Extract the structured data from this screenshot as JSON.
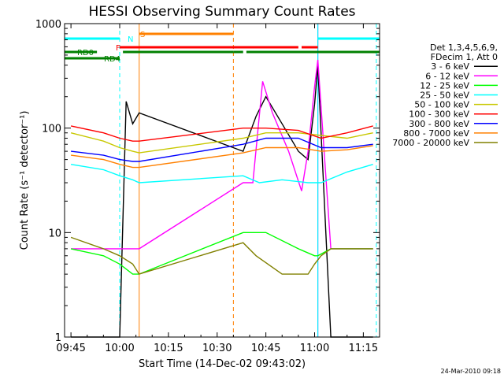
{
  "chart_data": {
    "type": "line",
    "title": "HESSI Observing Summary Count Rates",
    "xlabel": "Start Time (14-Dec-02 09:43:02)",
    "ylabel": "Count Rate (s⁻¹ detector⁻¹)",
    "x_ticks": [
      "09:45",
      "10:00",
      "10:15",
      "10:30",
      "10:45",
      "11:00",
      "11:15"
    ],
    "y_ticks": [
      "1",
      "10",
      "100",
      "1000"
    ],
    "xlim": [
      "09:43:02",
      "11:20:00"
    ],
    "ylim": [
      1,
      1000
    ],
    "y_scale": "log",
    "legend_header": [
      "Det 1,3,4,5,6,9,",
      "FDecim 1, Att 0"
    ],
    "series": [
      {
        "name": "3 - 6 keV",
        "color": "#000000",
        "x": [
          "09:45",
          "09:55",
          "10:00",
          "10:02",
          "10:04",
          "10:06",
          "10:38",
          "10:42",
          "10:45",
          "10:50",
          "10:55",
          "10:58",
          "11:00",
          "11:01",
          "11:05",
          "11:10",
          "11:15",
          "11:18"
        ],
        "values": [
          1,
          1,
          1,
          180,
          110,
          140,
          60,
          130,
          200,
          110,
          60,
          50,
          170,
          400,
          1,
          1,
          1,
          1
        ]
      },
      {
        "name": "6 - 12 keV",
        "color": "#ff00ff",
        "x": [
          "09:45",
          "10:00",
          "10:04",
          "10:06",
          "10:38",
          "10:41",
          "10:44",
          "10:47",
          "10:52",
          "10:56",
          "10:58",
          "11:00",
          "11:01",
          "11:05",
          "11:10",
          "11:15",
          "11:18"
        ],
        "values": [
          7,
          7,
          7,
          7,
          30,
          30,
          280,
          140,
          60,
          25,
          60,
          250,
          450,
          7,
          7,
          7,
          7
        ]
      },
      {
        "name": "12 - 25 keV",
        "color": "#00ff00",
        "x": [
          "09:45",
          "09:55",
          "10:00",
          "10:04",
          "10:06",
          "10:38",
          "10:45",
          "10:55",
          "11:00",
          "11:01",
          "11:05",
          "11:10",
          "11:18"
        ],
        "values": [
          7,
          6,
          5,
          4,
          4,
          10,
          10,
          7,
          6,
          6,
          7,
          7,
          7
        ]
      },
      {
        "name": "25 - 50 keV",
        "color": "#00ffff",
        "x": [
          "09:45",
          "09:55",
          "10:00",
          "10:04",
          "10:06",
          "10:38",
          "10:43",
          "10:50",
          "10:58",
          "11:02",
          "11:10",
          "11:18"
        ],
        "values": [
          45,
          40,
          35,
          32,
          30,
          35,
          30,
          32,
          30,
          30,
          38,
          45
        ]
      },
      {
        "name": "50 - 100 keV",
        "color": "#c8c800",
        "x": [
          "09:45",
          "09:55",
          "10:00",
          "10:04",
          "10:06",
          "10:38",
          "10:45",
          "10:55",
          "11:02",
          "11:10",
          "11:18"
        ],
        "values": [
          90,
          75,
          65,
          60,
          58,
          80,
          90,
          90,
          85,
          80,
          90
        ]
      },
      {
        "name": "100 - 300 keV",
        "color": "#ff0000",
        "x": [
          "09:45",
          "09:55",
          "10:00",
          "10:04",
          "10:06",
          "10:38",
          "10:45",
          "10:55",
          "11:02",
          "11:10",
          "11:18"
        ],
        "values": [
          105,
          90,
          80,
          75,
          75,
          100,
          100,
          95,
          80,
          90,
          105
        ]
      },
      {
        "name": "300 - 800 keV",
        "color": "#0000ff",
        "x": [
          "09:45",
          "09:55",
          "10:00",
          "10:04",
          "10:06",
          "10:38",
          "10:45",
          "10:55",
          "11:02",
          "11:10",
          "11:18"
        ],
        "values": [
          60,
          55,
          50,
          48,
          48,
          70,
          80,
          80,
          65,
          65,
          70
        ]
      },
      {
        "name": "800 - 7000 keV",
        "color": "#ff8000",
        "x": [
          "09:45",
          "09:55",
          "10:00",
          "10:04",
          "10:06",
          "10:38",
          "10:45",
          "10:55",
          "11:02",
          "11:10",
          "11:18"
        ],
        "values": [
          55,
          50,
          45,
          42,
          42,
          58,
          65,
          65,
          60,
          62,
          68
        ]
      },
      {
        "name": "7000 - 20000 keV",
        "color": "#808000",
        "x": [
          "09:45",
          "09:55",
          "10:00",
          "10:04",
          "10:06",
          "10:38",
          "10:42",
          "10:50",
          "10:58",
          "11:00",
          "11:02",
          "11:05",
          "11:10",
          "11:18"
        ],
        "values": [
          9,
          7,
          6,
          5,
          4,
          8,
          6,
          4,
          4,
          5,
          6,
          7,
          7,
          7
        ]
      }
    ],
    "flag_bars": [
      {
        "label": "S",
        "color": "#ff8000",
        "segments": [
          [
            "10:06",
            "10:35"
          ]
        ]
      },
      {
        "label": "N",
        "color": "#00ffff",
        "segments": [
          [
            "09:43:02",
            "10:00"
          ],
          [
            "11:01",
            "11:20"
          ]
        ]
      },
      {
        "label": "F",
        "color": "#ff0000",
        "segments": [
          [
            "10:00",
            "10:55"
          ],
          [
            "10:56",
            "11:01"
          ]
        ]
      },
      {
        "label": "RD0",
        "color": "#008000",
        "segments": [
          [
            "09:43:02",
            "09:53"
          ],
          [
            "10:01",
            "10:35"
          ],
          [
            "10:35",
            "10:38"
          ],
          [
            "10:39",
            "11:20"
          ]
        ]
      },
      {
        "label": "RD4",
        "color": "#008000",
        "segments": [
          [
            "09:43:02",
            "10:00"
          ]
        ]
      }
    ],
    "event_lines": [
      {
        "time": "09:43:02",
        "color": "#00ffff",
        "style": "solid"
      },
      {
        "time": "10:00",
        "color": "#00ffff",
        "style": "dashed"
      },
      {
        "time": "10:06",
        "color": "#ff8000",
        "style": "solid"
      },
      {
        "time": "10:35",
        "color": "#ff8000",
        "style": "dashed"
      },
      {
        "time": "11:01",
        "color": "#0000ff",
        "style": "solid"
      },
      {
        "time": "11:01",
        "color": "#00ffff",
        "style": "solid"
      },
      {
        "time": "11:19",
        "color": "#00ffff",
        "style": "dashed"
      }
    ],
    "grid": false,
    "legend_position": "right"
  },
  "timestamp": "24-Mar-2010 09:18"
}
